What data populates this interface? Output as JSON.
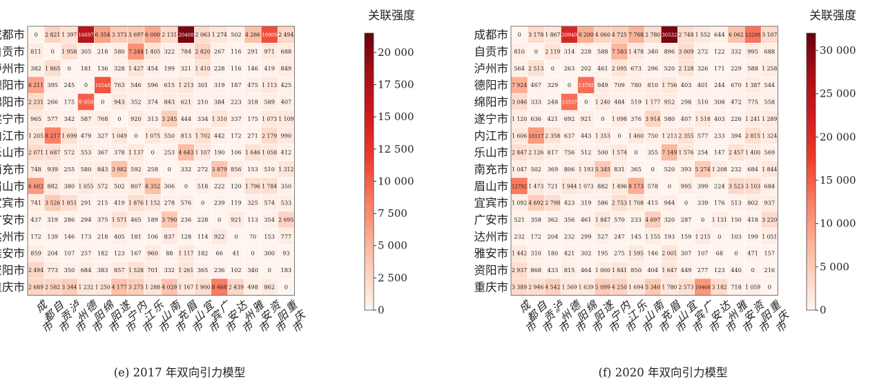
{
  "chart_data": [
    {
      "type": "heatmap",
      "caption": "(e) 2017 年双向引力模型",
      "colorbar_title": "关联强度",
      "colorbar_ticks": [
        0,
        2500,
        5000,
        7500,
        10000,
        12500,
        15000,
        17500,
        20000
      ],
      "colorbar_tick_labels": [
        "0",
        "2 500",
        "5 000",
        "7 500",
        "10 000",
        "12 500",
        "15 000",
        "17 500",
        "20 000"
      ],
      "vmin": 0,
      "vmax": 21500,
      "rows": [
        "成都市",
        "自贡市",
        "泸州市",
        "德阳市",
        "绵阳市",
        "遂宁市",
        "内江市",
        "乐山市",
        "南充市",
        "眉山市",
        "宜宾市",
        "广安市",
        "达州市",
        "雅安市",
        "资阳市",
        "重庆市"
      ],
      "cols": [
        "成都市",
        "自贡市",
        "泸州市",
        "德阳市",
        "绵阳市",
        "遂宁市",
        "内江市",
        "乐山市",
        "南充市",
        "眉山市",
        "宜宾市",
        "广安市",
        "达州市",
        "雅安市",
        "资阳市",
        "重庆市"
      ],
      "values": [
        [
          0,
          2821,
          1397,
          16697,
          6354,
          3373,
          3697,
          6000,
          2131,
          20408,
          2063,
          1274,
          502,
          4266,
          10909,
          2494
        ],
        [
          811,
          0,
          1958,
          305,
          218,
          580,
          7244,
          1405,
          322,
          784,
          2820,
          267,
          116,
          291,
          971,
          688
        ],
        [
          382,
          1865,
          0,
          181,
          136,
          328,
          1427,
          454,
          199,
          321,
          1410,
          228,
          116,
          146,
          419,
          849
        ],
        [
          6211,
          395,
          245,
          0,
          10548,
          763,
          546,
          596,
          615,
          1213,
          301,
          319,
          187,
          475,
          1113,
          425
        ],
        [
          2231,
          266,
          175,
          9959,
          0,
          943,
          352,
          374,
          843,
          621,
          210,
          384,
          223,
          318,
          589,
          407
        ],
        [
          965,
          577,
          342,
          587,
          768,
          0,
          920,
          313,
          3245,
          444,
          334,
          1310,
          337,
          175,
          1073,
          1109
        ],
        [
          1205,
          8217,
          1699,
          479,
          327,
          1049,
          0,
          1075,
          550,
          813,
          1702,
          442,
          172,
          271,
          2179,
          990
        ],
        [
          2071,
          1687,
          572,
          553,
          367,
          378,
          1137,
          0,
          253,
          4643,
          1107,
          190,
          106,
          1646,
          1058,
          412
        ],
        [
          748,
          939,
          255,
          580,
          843,
          3982,
          592,
          258,
          0,
          332,
          272,
          3879,
          856,
          153,
          510,
          1312
        ],
        [
          6602,
          882,
          380,
          1055,
          572,
          502,
          807,
          4352,
          306,
          0,
          518,
          222,
          120,
          1796,
          1784,
          350
        ],
        [
          741,
          3526,
          1851,
          291,
          215,
          419,
          1876,
          1152,
          278,
          576,
          0,
          239,
          119,
          325,
          574,
          533
        ],
        [
          437,
          319,
          286,
          294,
          375,
          1571,
          465,
          189,
          3790,
          236,
          228,
          0,
          921,
          113,
          354,
          2695
        ],
        [
          172,
          139,
          146,
          173,
          218,
          405,
          181,
          106,
          837,
          128,
          114,
          922,
          0,
          70,
          153,
          777
        ],
        [
          859,
          204,
          107,
          257,
          182,
          123,
          167,
          960,
          88,
          1117,
          182,
          66,
          41,
          0,
          300,
          93
        ],
        [
          2494,
          773,
          350,
          684,
          383,
          857,
          1528,
          701,
          332,
          1261,
          365,
          236,
          102,
          340,
          0,
          183
        ],
        [
          2689,
          2582,
          3344,
          1232,
          1250,
          4177,
          3275,
          1288,
          4029,
          1167,
          1900,
          8468,
          2439,
          498,
          862,
          0
        ]
      ]
    },
    {
      "type": "heatmap",
      "caption": "(f) 2020 年双向引力模型",
      "colorbar_title": "关联强度",
      "colorbar_ticks": [
        0,
        5000,
        10000,
        15000,
        20000,
        25000,
        30000
      ],
      "colorbar_tick_labels": [
        "0",
        "5 000",
        "10 000",
        "15 000",
        "20 000",
        "25 000",
        "30 000"
      ],
      "vmin": 0,
      "vmax": 32000,
      "rows": [
        "成都市",
        "自贡市",
        "泸州市",
        "德阳市",
        "绵阳市",
        "遂宁市",
        "内江市",
        "乐山市",
        "南充市",
        "眉山市",
        "宜宾市",
        "广安市",
        "达州市",
        "雅安市",
        "资阳市",
        "重庆市"
      ],
      "cols": [
        "成都市",
        "自贡市",
        "泸州市",
        "德阳市",
        "绵阳市",
        "遂宁市",
        "内江市",
        "乐山市",
        "南充市",
        "眉山市",
        "宜宾市",
        "广安市",
        "达州市",
        "雅安市",
        "资阳市",
        "重庆市"
      ],
      "values": [
        [
          0,
          3178,
          1867,
          20940,
          8200,
          4060,
          4725,
          7768,
          2780,
          30532,
          2748,
          1552,
          644,
          6062,
          13209,
          3107
        ],
        [
          810,
          0,
          2119,
          314,
          228,
          588,
          7583,
          1478,
          340,
          896,
          3009,
          272,
          122,
          332,
          995,
          688
        ],
        [
          564,
          2513,
          0,
          263,
          202,
          461,
          2095,
          673,
          296,
          520,
          2128,
          326,
          171,
          229,
          588,
          1258
        ],
        [
          7924,
          467,
          329,
          0,
          13792,
          949,
          709,
          780,
          810,
          1756,
          403,
          401,
          244,
          670,
          1387,
          544
        ],
        [
          3046,
          333,
          248,
          13537,
          0,
          1240,
          484,
          519,
          1177,
          952,
          298,
          510,
          308,
          472,
          775,
          558
        ],
        [
          1120,
          636,
          421,
          692,
          921,
          0,
          1098,
          376,
          3914,
          580,
          407,
          1518,
          403,
          226,
          1241,
          1289
        ],
        [
          1606,
          10117,
          2358,
          637,
          443,
          1353,
          0,
          1460,
          750,
          1213,
          2355,
          577,
          233,
          394,
          2815,
          1324
        ],
        [
          2847,
          2126,
          817,
          756,
          512,
          500,
          1574,
          0,
          355,
          7149,
          1576,
          254,
          147,
          2457,
          1400,
          569
        ],
        [
          1047,
          502,
          369,
          806,
          1193,
          5345,
          831,
          365,
          0,
          520,
          393,
          5274,
          1208,
          232,
          684,
          1844
        ],
        [
          12792,
          1473,
          721,
          1944,
          1073,
          882,
          1496,
          8173,
          578,
          0,
          995,
          399,
          224,
          3523,
          3103,
          684
        ],
        [
          1092,
          4692,
          2798,
          423,
          319,
          586,
          2753,
          1708,
          415,
          944,
          0,
          339,
          176,
          513,
          802,
          937
        ],
        [
          521,
          358,
          362,
          356,
          461,
          1847,
          570,
          233,
          4697,
          320,
          287,
          0,
          1131,
          150,
          418,
          3220
        ],
        [
          232,
          172,
          204,
          232,
          299,
          527,
          247,
          145,
          1155,
          193,
          159,
          1215,
          0,
          103,
          199,
          1051
        ],
        [
          1442,
          310,
          180,
          421,
          302,
          195,
          275,
          1595,
          146,
          2001,
          307,
          107,
          68,
          0,
          471,
          157
        ],
        [
          2937,
          868,
          433,
          815,
          464,
          1000,
          1841,
          850,
          404,
          1647,
          449,
          277,
          123,
          440,
          0,
          216
        ],
        [
          3389,
          2946,
          4542,
          1569,
          1639,
          5099,
          4250,
          1694,
          5340,
          1780,
          2573,
          10468,
          3182,
          718,
          1059,
          0
        ]
      ]
    }
  ]
}
